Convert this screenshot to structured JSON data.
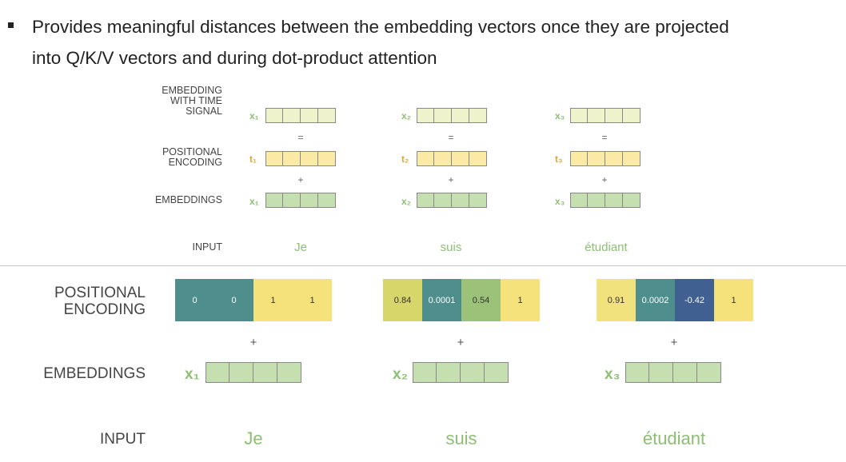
{
  "bullet": {
    "line1": "Provides meaningful distances between the embedding vectors once they are projected",
    "line2": "into Q/K/V vectors and during dot-product attention"
  },
  "top_diagram": {
    "labels": {
      "embedding_time_signal": [
        "EMBEDDING",
        "WITH TIME",
        "SIGNAL"
      ],
      "positional_encoding": [
        "POSITIONAL",
        "ENCODING"
      ],
      "embeddings": "EMBEDDINGS",
      "input": "INPUT"
    },
    "ops": {
      "equals": "=",
      "plus": "+"
    },
    "columns": [
      {
        "x_sym": "x₁",
        "t_sym": "t₁",
        "e_sym": "x₁",
        "word": "Je"
      },
      {
        "x_sym": "x₂",
        "t_sym": "t₂",
        "e_sym": "x₂",
        "word": "suis"
      },
      {
        "x_sym": "x₃",
        "t_sym": "t₃",
        "e_sym": "x₃",
        "word": "étudiant"
      }
    ],
    "colors": {
      "time_signal": "#eef3cc",
      "positional": "#fbe9a6",
      "embedding": "#c5dfb0"
    }
  },
  "bottom_diagram": {
    "labels": {
      "positional_encoding": [
        "POSITIONAL",
        "ENCODING"
      ],
      "embeddings": "EMBEDDINGS",
      "input": "INPUT"
    },
    "op_plus": "+",
    "columns": [
      {
        "word": "Je",
        "sym": "x₁",
        "values": [
          "0",
          "0",
          "1",
          "1"
        ],
        "colors": [
          "#4e8f8d",
          "#4e8f8d",
          "#f6e27a",
          "#f6e27a"
        ]
      },
      {
        "word": "suis",
        "sym": "x₂",
        "values": [
          "0.84",
          "0.0001",
          "0.54",
          "1"
        ],
        "colors": [
          "#d6d66a",
          "#4e8f8d",
          "#9cc27a",
          "#f6e27a"
        ]
      },
      {
        "word": "étudiant",
        "sym": "x₃",
        "values": [
          "0.91",
          "0.0002",
          "-0.42",
          "1"
        ],
        "colors": [
          "#f2e27e",
          "#4e8f8d",
          "#3f6091",
          "#f6e27a"
        ]
      }
    ],
    "embedding_color": "#c5dfb0"
  }
}
